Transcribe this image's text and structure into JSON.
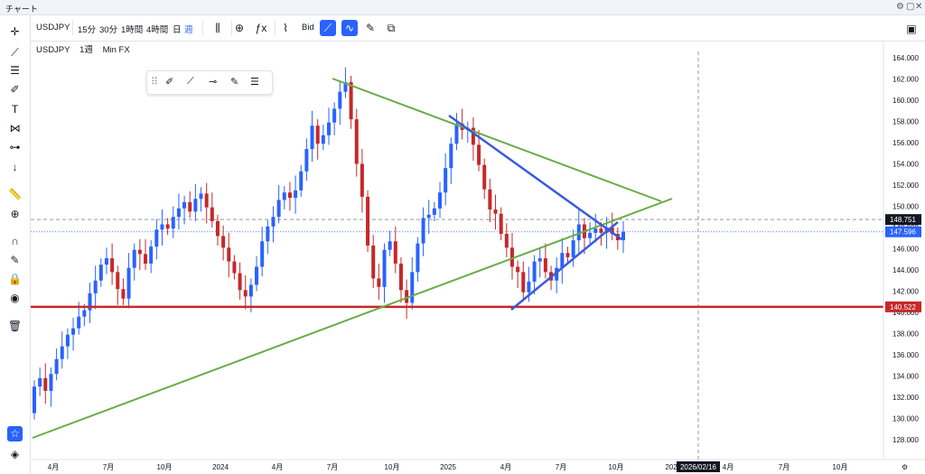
{
  "window": {
    "title": "チャート"
  },
  "toolbar": {
    "symbol": "USDJPY",
    "intervals": [
      "15分",
      "30分",
      "1時間",
      "4時間",
      "日",
      "週"
    ],
    "active_interval": "週",
    "bid_label": "Bid"
  },
  "legend": {
    "symbol": "USDJPY",
    "interval": "1週",
    "source": "Min FX"
  },
  "left_tools": [
    "crosshair-icon",
    "trendline-icon",
    "fib-icon",
    "brush-icon",
    "text-icon",
    "pattern-icon",
    "forecast-icon",
    "arrow-down-icon",
    "ruler-icon",
    "zoom-in-icon",
    "magnet-icon",
    "lock-drawing-icon",
    "lock-icon",
    "eye-icon",
    "trash-icon",
    "favorite-icon",
    "layers-icon"
  ],
  "drawing_toolbar": [
    "brush-icon",
    "line-icon",
    "ray-icon",
    "pen-icon",
    "lines-icon"
  ],
  "chart_data": {
    "type": "candlestick",
    "symbol": "USDJPY",
    "price_axis": [
      128,
      130,
      132,
      134,
      136,
      138,
      140,
      142,
      144,
      146,
      148,
      150,
      152,
      154,
      156,
      158,
      160,
      162,
      164
    ],
    "price_axis_labels": [
      "128.000",
      "130.000",
      "132.000",
      "134.000",
      "136.000",
      "138.000",
      "140.000",
      "142.000",
      "144.000",
      "146.000",
      "148.000",
      "150.000",
      "152.000",
      "154.000",
      "156.000",
      "158.000",
      "160.000",
      "162.000",
      "164.000"
    ],
    "time_labels": [
      "4月",
      "7月",
      "10月",
      "2024",
      "4月",
      "7月",
      "10月",
      "2025",
      "4月",
      "7月",
      "10月",
      "202",
      "4月",
      "7月",
      "10月"
    ],
    "crosshair_time_label": "2026/02/16",
    "price_tags": [
      {
        "value": 148.751,
        "label": "148.751",
        "color": "#131722"
      },
      {
        "value": 147.596,
        "label": "147.596",
        "color": "#2962ff"
      },
      {
        "value": 140.522,
        "label": "140.522",
        "color": "#c62828"
      }
    ],
    "horizontal_line": {
      "value": 140.522,
      "color": "#c62828"
    },
    "colors": {
      "up": "#2962ff",
      "down": "#c62828",
      "triangle_large": "#6aab47",
      "triangle_small": "#3b5bdb"
    },
    "candles_close": [
      133.0,
      133.8,
      132.6,
      134.2,
      135.6,
      136.8,
      137.9,
      138.5,
      139.6,
      140.2,
      141.8,
      143.0,
      144.5,
      145.1,
      143.8,
      142.2,
      141.3,
      144.2,
      145.9,
      145.5,
      144.6,
      146.2,
      147.8,
      148.3,
      147.9,
      149.0,
      149.8,
      150.4,
      149.5,
      150.7,
      151.2,
      149.9,
      148.6,
      147.2,
      146.1,
      144.8,
      143.7,
      142.1,
      141.5,
      142.6,
      144.3,
      146.7,
      148.1,
      149.0,
      150.6,
      151.3,
      150.8,
      151.5,
      153.3,
      155.4,
      157.6,
      155.9,
      156.7,
      157.9,
      159.2,
      160.8,
      161.7,
      158.2,
      154.0,
      150.9,
      146.3,
      143.2,
      142.4,
      145.9,
      146.7,
      144.6,
      142.1,
      140.9,
      143.8,
      146.5,
      148.9,
      149.2,
      149.8,
      151.3,
      153.6,
      155.9,
      157.8,
      157.2,
      157.4,
      155.8,
      153.9,
      151.6,
      149.7,
      149.3,
      147.4,
      146.1,
      144.3,
      143.8,
      141.9,
      142.9,
      144.8,
      145.1,
      143.8,
      143.0,
      144.2,
      145.6,
      145.2,
      146.8,
      148.3,
      147.0,
      147.5,
      147.9,
      147.5,
      148.0,
      147.4,
      146.8,
      147.6
    ]
  }
}
